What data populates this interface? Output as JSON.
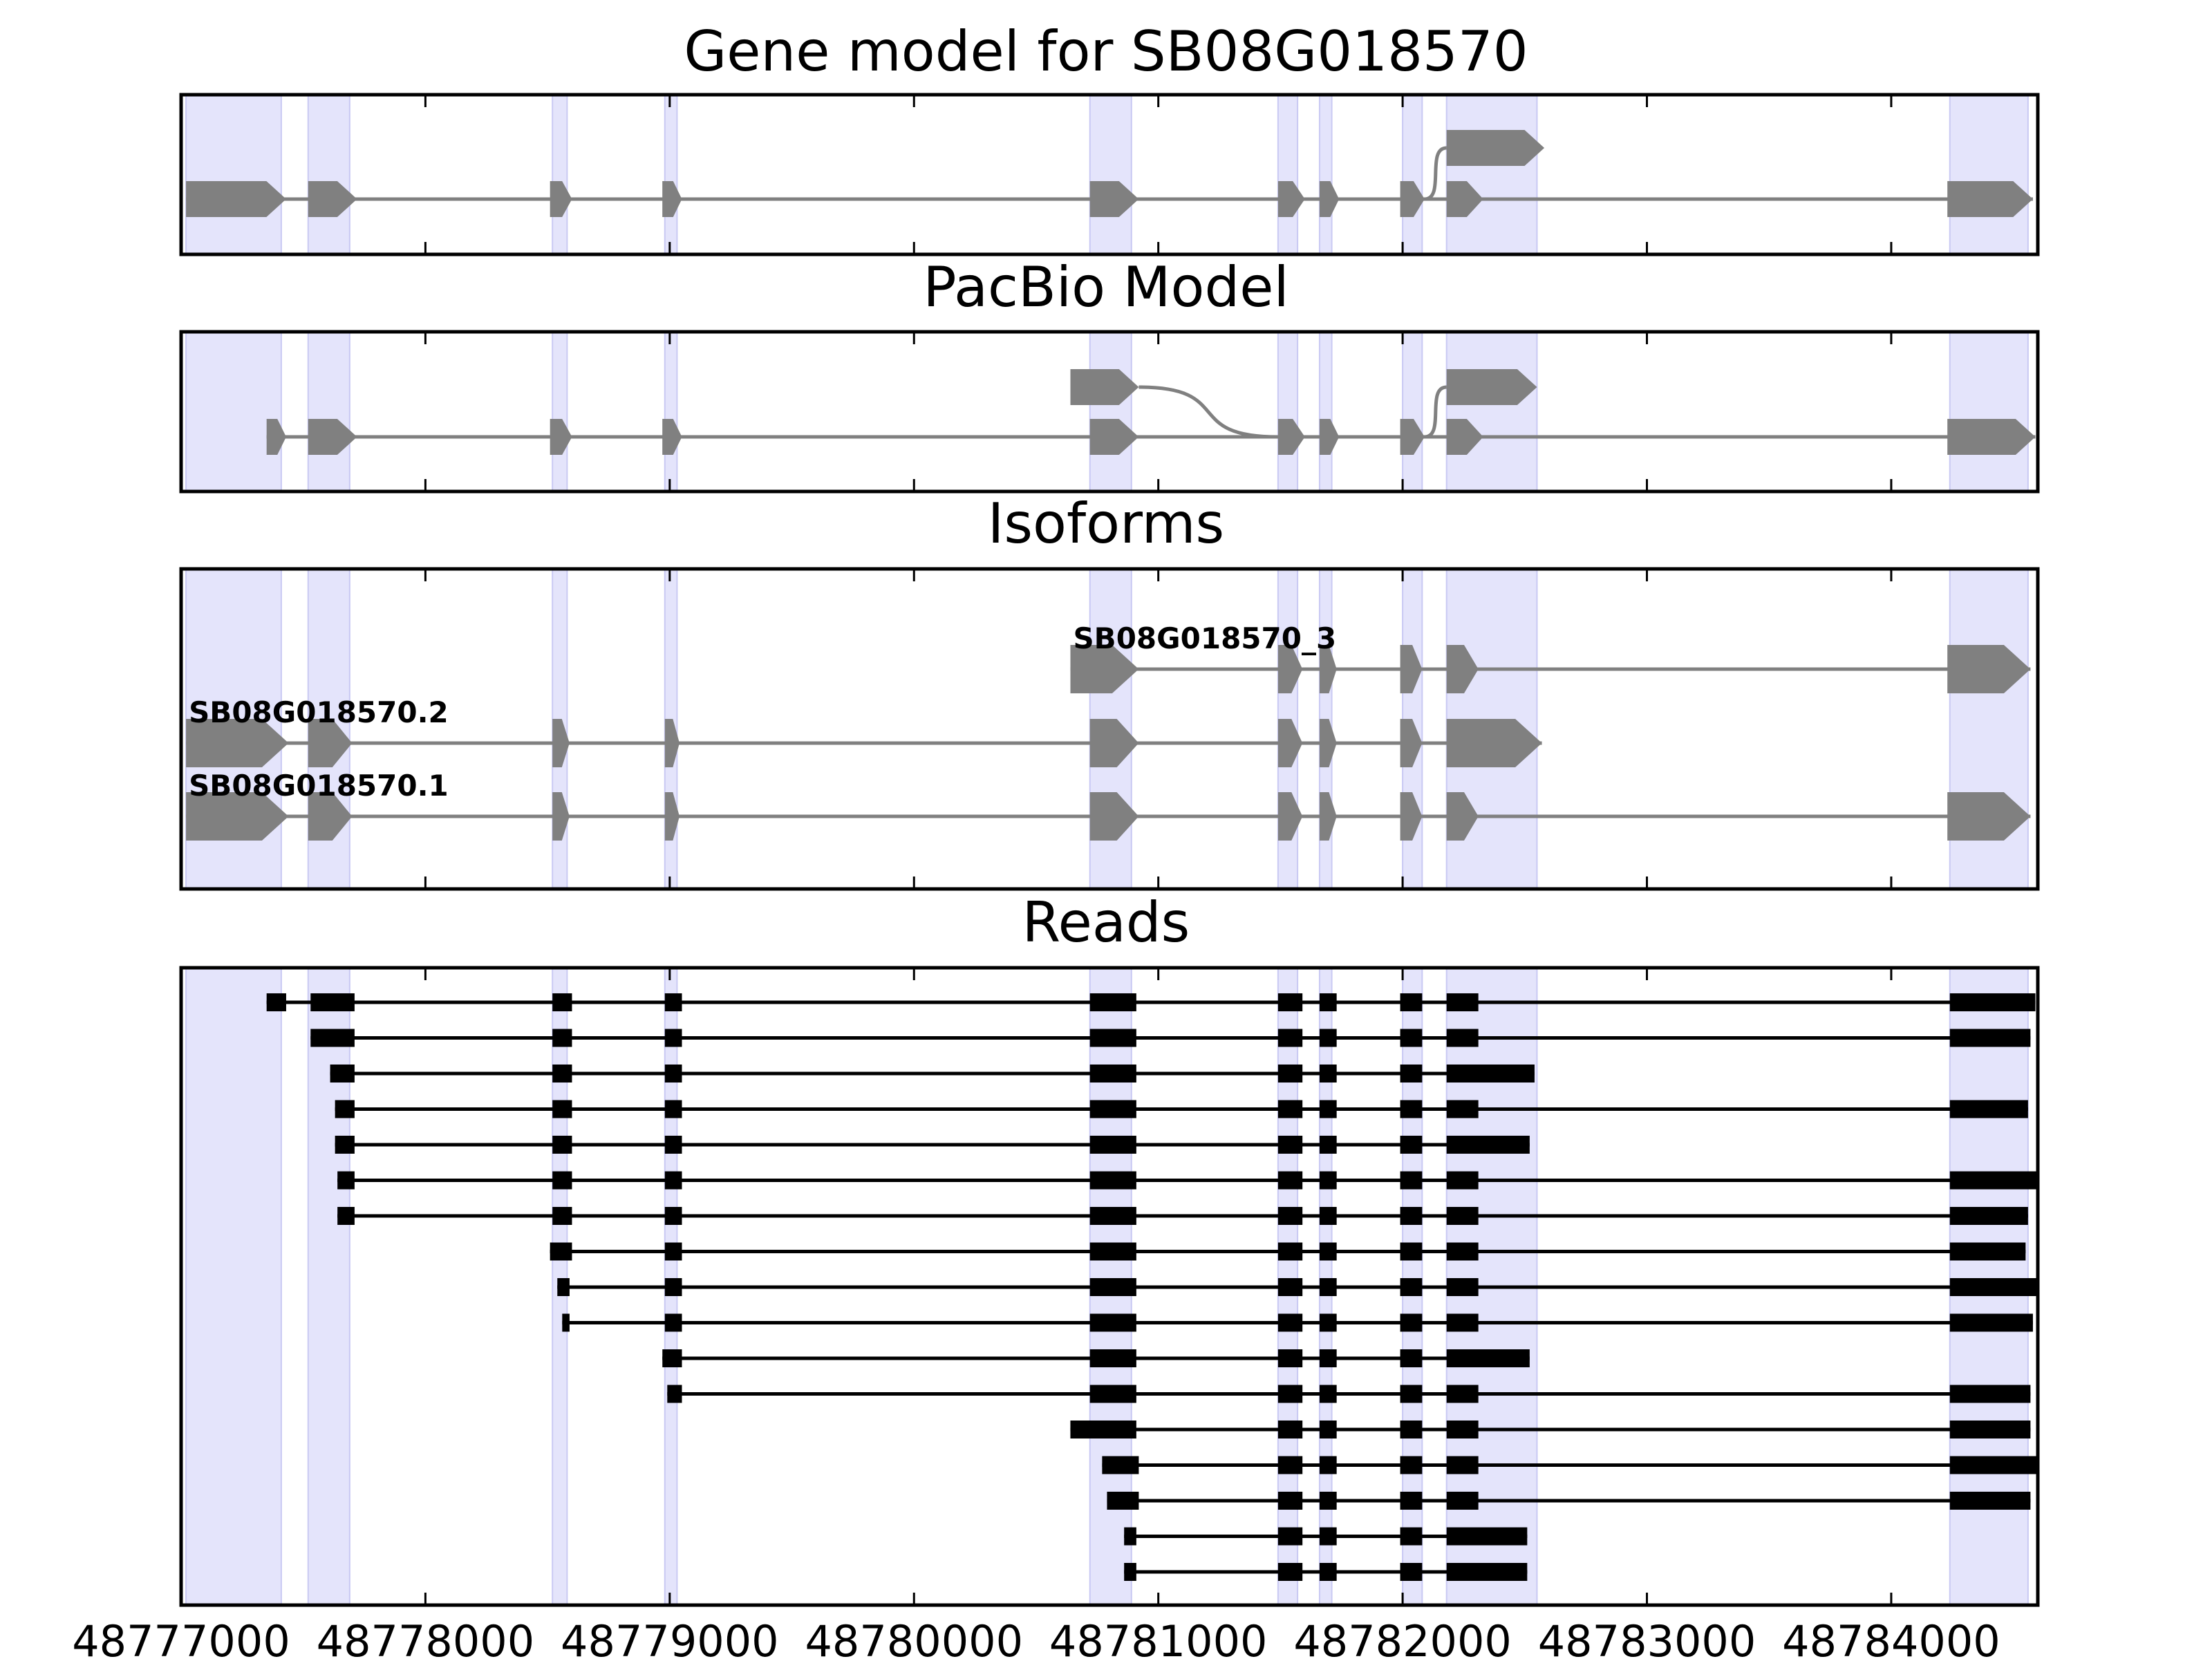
{
  "titles": {
    "gene_model": "Gene model for SB08G018570",
    "pacbio": "PacBio Model",
    "isoforms": "Isoforms",
    "reads": "Reads"
  },
  "colors": {
    "highlight": "#e4e4fb",
    "highlight_edge": "#c9c9f3",
    "feature": "#808080",
    "read": "#000000",
    "frame": "#000000"
  },
  "chart_data": {
    "type": "gene-track",
    "x_range": [
      48777000,
      48784600
    ],
    "x_ticks": [
      48777000,
      48778000,
      48779000,
      48780000,
      48781000,
      48782000,
      48783000,
      48784000
    ],
    "x_tick_labels": [
      "48777000",
      "48778000",
      "48779000",
      "48780000",
      "48781000",
      "48782000",
      "48783000",
      "48784000"
    ],
    "exon_regions": [
      [
        48777020,
        48777410
      ],
      [
        48777520,
        48777690
      ],
      [
        48778520,
        48778580
      ],
      [
        48778980,
        48779030
      ],
      [
        48780720,
        48780890
      ],
      [
        48781490,
        48781570
      ],
      [
        48781660,
        48781710
      ],
      [
        48782000,
        48782080
      ],
      [
        48782180,
        48782550
      ],
      [
        48784240,
        48784560
      ]
    ],
    "gene_model": [
      {
        "exons": [
          [
            48777020,
            48777430
          ],
          [
            48777520,
            48777720
          ],
          [
            48778510,
            48778600
          ],
          [
            48778970,
            48779050
          ],
          [
            48780720,
            48780920
          ],
          [
            48781490,
            48781600
          ],
          [
            48781660,
            48781740
          ],
          [
            48781990,
            48782090
          ],
          [
            48782180,
            48782330
          ],
          [
            48784230,
            48784580
          ]
        ],
        "alt_to": 8
      },
      {
        "exons": [
          [
            48782180,
            48782580
          ]
        ]
      }
    ],
    "pacbio_model": [
      {
        "exons": [
          [
            48777350,
            48777430
          ],
          [
            48777520,
            48777720
          ],
          [
            48778510,
            48778600
          ],
          [
            48778970,
            48779050
          ],
          [
            48780720,
            48780920
          ],
          [
            48781490,
            48781600
          ],
          [
            48781660,
            48781740
          ],
          [
            48781990,
            48782090
          ],
          [
            48782180,
            48782330
          ],
          [
            48784230,
            48784590
          ]
        ]
      },
      {
        "exons": [
          [
            48780640,
            48780920
          ]
        ],
        "joins_to": 5
      },
      {
        "exons": [
          [
            48782180,
            48782550
          ]
        ],
        "joins_from": 7
      }
    ],
    "isoforms": [
      {
        "name": "SB08G018570_3",
        "exons": [
          [
            48780640,
            48780920
          ],
          [
            48781490,
            48781590
          ],
          [
            48781660,
            48781730
          ],
          [
            48781990,
            48782080
          ],
          [
            48782180,
            48782310
          ],
          [
            48784230,
            48784570
          ]
        ]
      },
      {
        "name": "SB08G018570.2",
        "exons": [
          [
            48777020,
            48777440
          ],
          [
            48777520,
            48777700
          ],
          [
            48778520,
            48778590
          ],
          [
            48778980,
            48779040
          ],
          [
            48780720,
            48780920
          ],
          [
            48781490,
            48781590
          ],
          [
            48781660,
            48781730
          ],
          [
            48781990,
            48782080
          ],
          [
            48782180,
            48782570
          ]
        ]
      },
      {
        "name": "SB08G018570.1",
        "exons": [
          [
            48777020,
            48777440
          ],
          [
            48777520,
            48777700
          ],
          [
            48778520,
            48778590
          ],
          [
            48778980,
            48779040
          ],
          [
            48780720,
            48780920
          ],
          [
            48781490,
            48781590
          ],
          [
            48781660,
            48781730
          ],
          [
            48781990,
            48782080
          ],
          [
            48782180,
            48782310
          ],
          [
            48784230,
            48784570
          ]
        ]
      }
    ],
    "reads": [
      [
        [
          48777350,
          48777430
        ],
        [
          48777530,
          48777710
        ],
        [
          48778520,
          48778600
        ],
        [
          48778980,
          48779050
        ],
        [
          48780720,
          48780910
        ],
        [
          48781490,
          48781590
        ],
        [
          48781660,
          48781730
        ],
        [
          48781990,
          48782080
        ],
        [
          48782180,
          48782310
        ],
        [
          48784240,
          48784590
        ]
      ],
      [
        [
          48777530,
          48777710
        ],
        [
          48778520,
          48778600
        ],
        [
          48778980,
          48779050
        ],
        [
          48780720,
          48780910
        ],
        [
          48781490,
          48781590
        ],
        [
          48781660,
          48781730
        ],
        [
          48781990,
          48782080
        ],
        [
          48782180,
          48782310
        ],
        [
          48784240,
          48784570
        ]
      ],
      [
        [
          48777610,
          48777710
        ],
        [
          48778520,
          48778600
        ],
        [
          48778980,
          48779050
        ],
        [
          48780720,
          48780910
        ],
        [
          48781490,
          48781590
        ],
        [
          48781660,
          48781730
        ],
        [
          48781990,
          48782080
        ],
        [
          48782180,
          48782540
        ]
      ],
      [
        [
          48777630,
          48777710
        ],
        [
          48778520,
          48778600
        ],
        [
          48778980,
          48779050
        ],
        [
          48780720,
          48780910
        ],
        [
          48781490,
          48781590
        ],
        [
          48781660,
          48781730
        ],
        [
          48781990,
          48782080
        ],
        [
          48782180,
          48782310
        ],
        [
          48784240,
          48784560
        ]
      ],
      [
        [
          48777630,
          48777710
        ],
        [
          48778520,
          48778600
        ],
        [
          48778980,
          48779050
        ],
        [
          48780720,
          48780910
        ],
        [
          48781490,
          48781590
        ],
        [
          48781660,
          48781730
        ],
        [
          48781990,
          48782080
        ],
        [
          48782180,
          48782520
        ]
      ],
      [
        [
          48777640,
          48777710
        ],
        [
          48778520,
          48778600
        ],
        [
          48778980,
          48779050
        ],
        [
          48780720,
          48780910
        ],
        [
          48781490,
          48781590
        ],
        [
          48781660,
          48781730
        ],
        [
          48781990,
          48782080
        ],
        [
          48782180,
          48782310
        ],
        [
          48784240,
          48784600
        ]
      ],
      [
        [
          48777640,
          48777710
        ],
        [
          48778520,
          48778600
        ],
        [
          48778980,
          48779050
        ],
        [
          48780720,
          48780910
        ],
        [
          48781490,
          48781590
        ],
        [
          48781660,
          48781730
        ],
        [
          48781990,
          48782080
        ],
        [
          48782180,
          48782310
        ],
        [
          48784240,
          48784560
        ]
      ],
      [
        [
          48778510,
          48778600
        ],
        [
          48778980,
          48779050
        ],
        [
          48780720,
          48780910
        ],
        [
          48781490,
          48781590
        ],
        [
          48781660,
          48781730
        ],
        [
          48781990,
          48782080
        ],
        [
          48782180,
          48782310
        ],
        [
          48784240,
          48784550
        ]
      ],
      [
        [
          48778540,
          48778590
        ],
        [
          48778980,
          48779050
        ],
        [
          48780720,
          48780910
        ],
        [
          48781490,
          48781590
        ],
        [
          48781660,
          48781730
        ],
        [
          48781990,
          48782080
        ],
        [
          48782180,
          48782310
        ],
        [
          48784240,
          48784600
        ]
      ],
      [
        [
          48778560,
          48778590
        ],
        [
          48778980,
          48779050
        ],
        [
          48780720,
          48780910
        ],
        [
          48781490,
          48781590
        ],
        [
          48781660,
          48781730
        ],
        [
          48781990,
          48782080
        ],
        [
          48782180,
          48782310
        ],
        [
          48784240,
          48784580
        ]
      ],
      [
        [
          48778970,
          48779050
        ],
        [
          48780720,
          48780910
        ],
        [
          48781490,
          48781590
        ],
        [
          48781660,
          48781730
        ],
        [
          48781990,
          48782080
        ],
        [
          48782180,
          48782520
        ]
      ],
      [
        [
          48778990,
          48779050
        ],
        [
          48780720,
          48780910
        ],
        [
          48781490,
          48781590
        ],
        [
          48781660,
          48781730
        ],
        [
          48781990,
          48782080
        ],
        [
          48782180,
          48782310
        ],
        [
          48784240,
          48784570
        ]
      ],
      [
        [
          48780640,
          48780910
        ],
        [
          48781490,
          48781590
        ],
        [
          48781660,
          48781730
        ],
        [
          48781990,
          48782080
        ],
        [
          48782180,
          48782310
        ],
        [
          48784240,
          48784570
        ]
      ],
      [
        [
          48780770,
          48780920
        ],
        [
          48781490,
          48781590
        ],
        [
          48781660,
          48781730
        ],
        [
          48781990,
          48782080
        ],
        [
          48782180,
          48782310
        ],
        [
          48784240,
          48784600
        ]
      ],
      [
        [
          48780790,
          48780920
        ],
        [
          48781490,
          48781590
        ],
        [
          48781660,
          48781730
        ],
        [
          48781990,
          48782080
        ],
        [
          48782180,
          48782310
        ],
        [
          48784240,
          48784570
        ]
      ],
      [
        [
          48780860,
          48780910
        ],
        [
          48781490,
          48781590
        ],
        [
          48781660,
          48781730
        ],
        [
          48781990,
          48782080
        ],
        [
          48782180,
          48782510
        ]
      ],
      [
        [
          48780860,
          48780910
        ],
        [
          48781490,
          48781590
        ],
        [
          48781660,
          48781730
        ],
        [
          48781990,
          48782080
        ],
        [
          48782180,
          48782510
        ]
      ]
    ]
  }
}
